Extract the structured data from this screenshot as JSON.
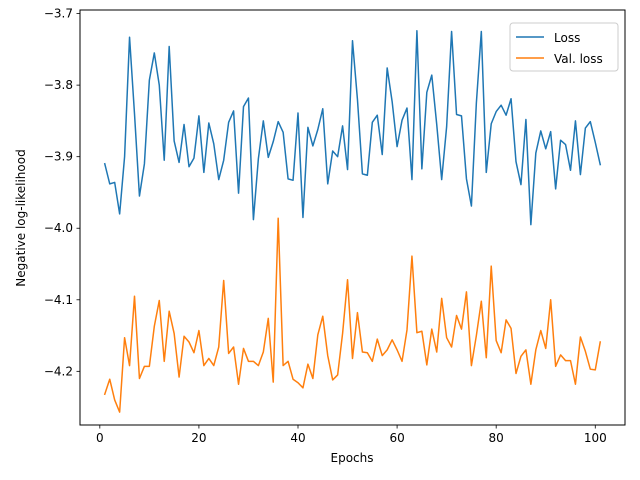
{
  "chart_data": {
    "type": "line",
    "title": "",
    "xlabel": "Epochs",
    "ylabel": "Negative log-likelihood",
    "xlim": [
      -4,
      106
    ],
    "ylim": [
      -4.275,
      -3.695
    ],
    "xticks": [
      0,
      20,
      40,
      60,
      80,
      100
    ],
    "yticks": [
      -4.2,
      -4.1,
      -4.0,
      -3.9,
      -3.8,
      -3.7
    ],
    "xtick_labels": [
      "0",
      "20",
      "40",
      "60",
      "80",
      "100"
    ],
    "ytick_labels": [
      "−4.2",
      "−4.1",
      "−4.0",
      "−3.9",
      "−3.8",
      "−3.7"
    ],
    "grid": false,
    "legend_position": "top-right",
    "x_start": 1,
    "series": [
      {
        "name": "Loss",
        "color": "#1f77b4",
        "values": [
          -3.91,
          -3.938,
          -3.936,
          -3.98,
          -3.9,
          -3.733,
          -3.84,
          -3.955,
          -3.91,
          -3.793,
          -3.755,
          -3.8,
          -3.905,
          -3.746,
          -3.878,
          -3.908,
          -3.855,
          -3.914,
          -3.902,
          -3.843,
          -3.922,
          -3.853,
          -3.882,
          -3.932,
          -3.905,
          -3.852,
          -3.836,
          -3.951,
          -3.83,
          -3.818,
          -3.988,
          -3.903,
          -3.85,
          -3.901,
          -3.879,
          -3.851,
          -3.866,
          -3.931,
          -3.933,
          -3.839,
          -3.985,
          -3.859,
          -3.885,
          -3.862,
          -3.833,
          -3.938,
          -3.892,
          -3.9,
          -3.857,
          -3.918,
          -3.738,
          -3.82,
          -3.924,
          -3.926,
          -3.852,
          -3.842,
          -3.897,
          -3.776,
          -3.823,
          -3.886,
          -3.849,
          -3.832,
          -3.932,
          -3.724,
          -3.917,
          -3.81,
          -3.786,
          -3.855,
          -3.932,
          -3.858,
          -3.725,
          -3.841,
          -3.843,
          -3.931,
          -3.969,
          -3.825,
          -3.725,
          -3.922,
          -3.854,
          -3.837,
          -3.828,
          -3.842,
          -3.819,
          -3.907,
          -3.939,
          -3.848,
          -3.995,
          -3.895,
          -3.864,
          -3.889,
          -3.865,
          -3.945,
          -3.877,
          -3.883,
          -3.919,
          -3.85,
          -3.925,
          -3.86,
          -3.851,
          -3.88,
          -3.911
        ]
      },
      {
        "name": "Val. loss",
        "color": "#ff7f0e",
        "values": [
          -4.232,
          -4.211,
          -4.24,
          -4.257,
          -4.153,
          -4.192,
          -4.095,
          -4.21,
          -4.193,
          -4.193,
          -4.137,
          -4.101,
          -4.186,
          -4.116,
          -4.147,
          -4.208,
          -4.151,
          -4.159,
          -4.174,
          -4.143,
          -4.192,
          -4.182,
          -4.192,
          -4.166,
          -4.073,
          -4.175,
          -4.166,
          -4.218,
          -4.168,
          -4.186,
          -4.186,
          -4.192,
          -4.173,
          -4.126,
          -4.215,
          -3.986,
          -4.192,
          -4.186,
          -4.211,
          -4.216,
          -4.223,
          -4.19,
          -4.21,
          -4.149,
          -4.123,
          -4.178,
          -4.212,
          -4.205,
          -4.147,
          -4.072,
          -4.182,
          -4.118,
          -4.173,
          -4.174,
          -4.186,
          -4.155,
          -4.178,
          -4.17,
          -4.156,
          -4.17,
          -4.186,
          -4.142,
          -4.039,
          -4.146,
          -4.144,
          -4.191,
          -4.141,
          -4.173,
          -4.098,
          -4.153,
          -4.166,
          -4.122,
          -4.141,
          -4.089,
          -4.192,
          -4.15,
          -4.102,
          -4.181,
          -4.053,
          -4.157,
          -4.174,
          -4.128,
          -4.14,
          -4.203,
          -4.179,
          -4.17,
          -4.218,
          -4.17,
          -4.143,
          -4.168,
          -4.1,
          -4.193,
          -4.177,
          -4.185,
          -4.185,
          -4.218,
          -4.152,
          -4.172,
          -4.197,
          -4.198,
          -4.159
        ]
      }
    ]
  }
}
